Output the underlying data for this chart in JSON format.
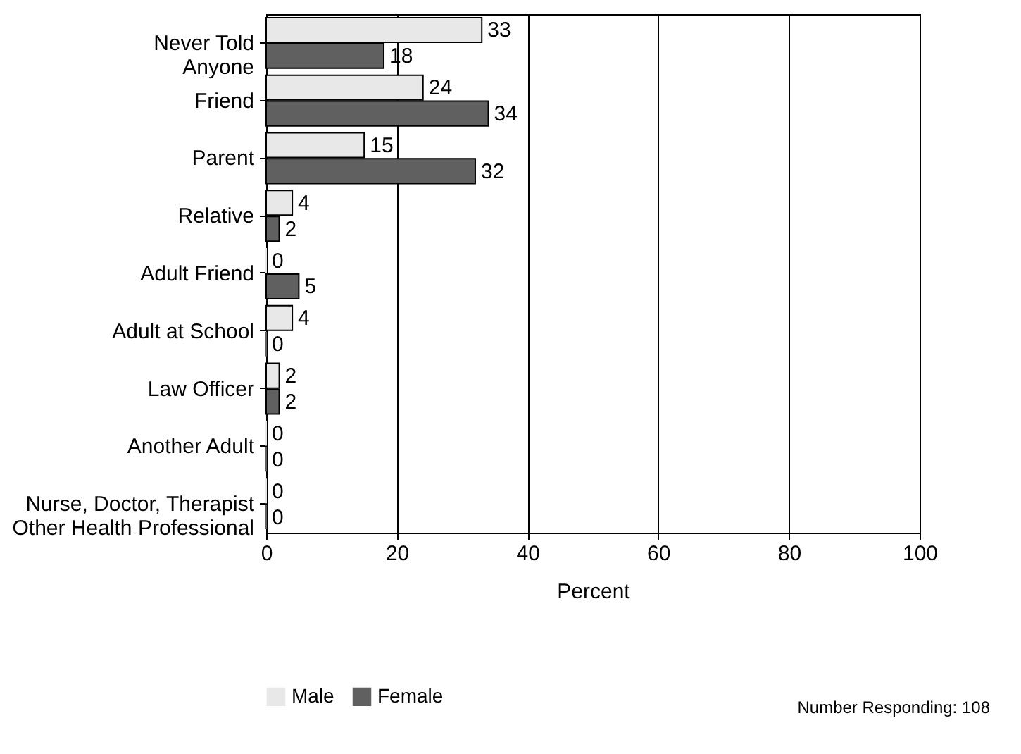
{
  "chart_data": {
    "type": "bar",
    "orientation": "horizontal",
    "xlabel": "Percent",
    "categories": [
      "Never Told\nAnyone",
      "Friend",
      "Parent",
      "Relative",
      "Adult Friend",
      "Adult at School",
      "Law Officer",
      "Another Adult",
      "Nurse, Doctor, Therapist\nOther Health Professional"
    ],
    "series": [
      {
        "name": "Male",
        "color": "#e8e8e8",
        "values": [
          33,
          24,
          15,
          4,
          0,
          4,
          2,
          0,
          0
        ]
      },
      {
        "name": "Female",
        "color": "#606060",
        "values": [
          18,
          34,
          32,
          2,
          5,
          0,
          2,
          0,
          0
        ]
      }
    ],
    "xlim": [
      0,
      100
    ],
    "xticks": [
      0,
      20,
      40,
      60,
      80,
      100
    ],
    "grid": "x",
    "legend": "bottom",
    "data_labels": true,
    "annotations": [
      "Number Responding: 108"
    ]
  }
}
